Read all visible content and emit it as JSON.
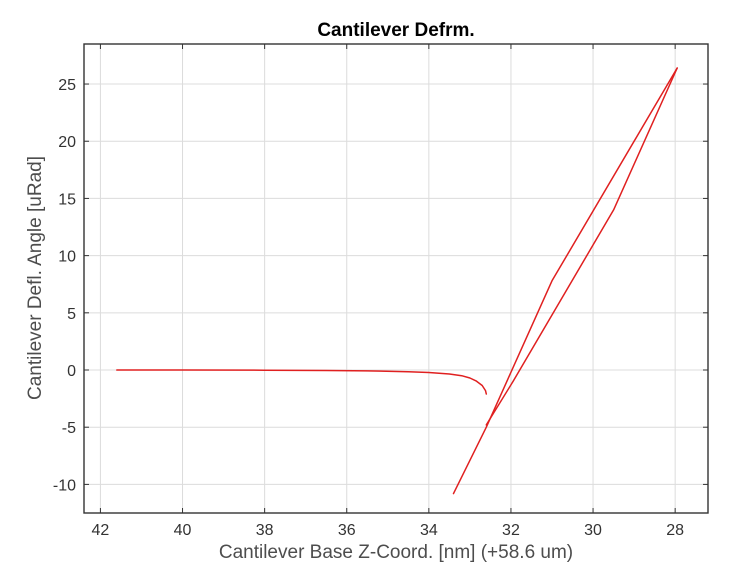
{
  "chart_data": {
    "type": "line",
    "title": "Cantilever Defrm.",
    "xlabel": "Cantilever Base Z-Coord. [nm] (+58.6 um)",
    "ylabel": "Cantilever Defl. Angle [uRad]",
    "xlim": [
      42.4,
      27.2
    ],
    "ylim": [
      -12.5,
      28.5
    ],
    "x_reversed": true,
    "grid": true,
    "xticks": [
      42,
      40,
      38,
      36,
      34,
      32,
      30,
      28
    ],
    "yticks": [
      25,
      20,
      15,
      10,
      5,
      0,
      -5,
      -10
    ],
    "ytick_labels": [
      "25",
      "20",
      "15",
      "10",
      "5",
      "0",
      "-5",
      "-10"
    ],
    "series_color": "#e02020",
    "series": [
      {
        "x": [
          41.6,
          40.0,
          38.0,
          36.5,
          35.5,
          34.5,
          34.0,
          33.5,
          33.2,
          33.0,
          32.85,
          32.7,
          32.62,
          32.6
        ],
        "y": [
          0.0,
          0.0,
          -0.02,
          -0.04,
          -0.08,
          -0.15,
          -0.22,
          -0.35,
          -0.5,
          -0.7,
          -0.95,
          -1.35,
          -1.8,
          -2.1
        ]
      },
      {
        "x": [
          33.4,
          32.6,
          31.0,
          27.95
        ],
        "y": [
          -10.8,
          -5.0,
          7.8,
          26.4
        ]
      },
      {
        "x": [
          27.95,
          29.5,
          31.95,
          32.6
        ],
        "y": [
          26.4,
          14.0,
          -1.0,
          -4.8
        ]
      }
    ]
  }
}
